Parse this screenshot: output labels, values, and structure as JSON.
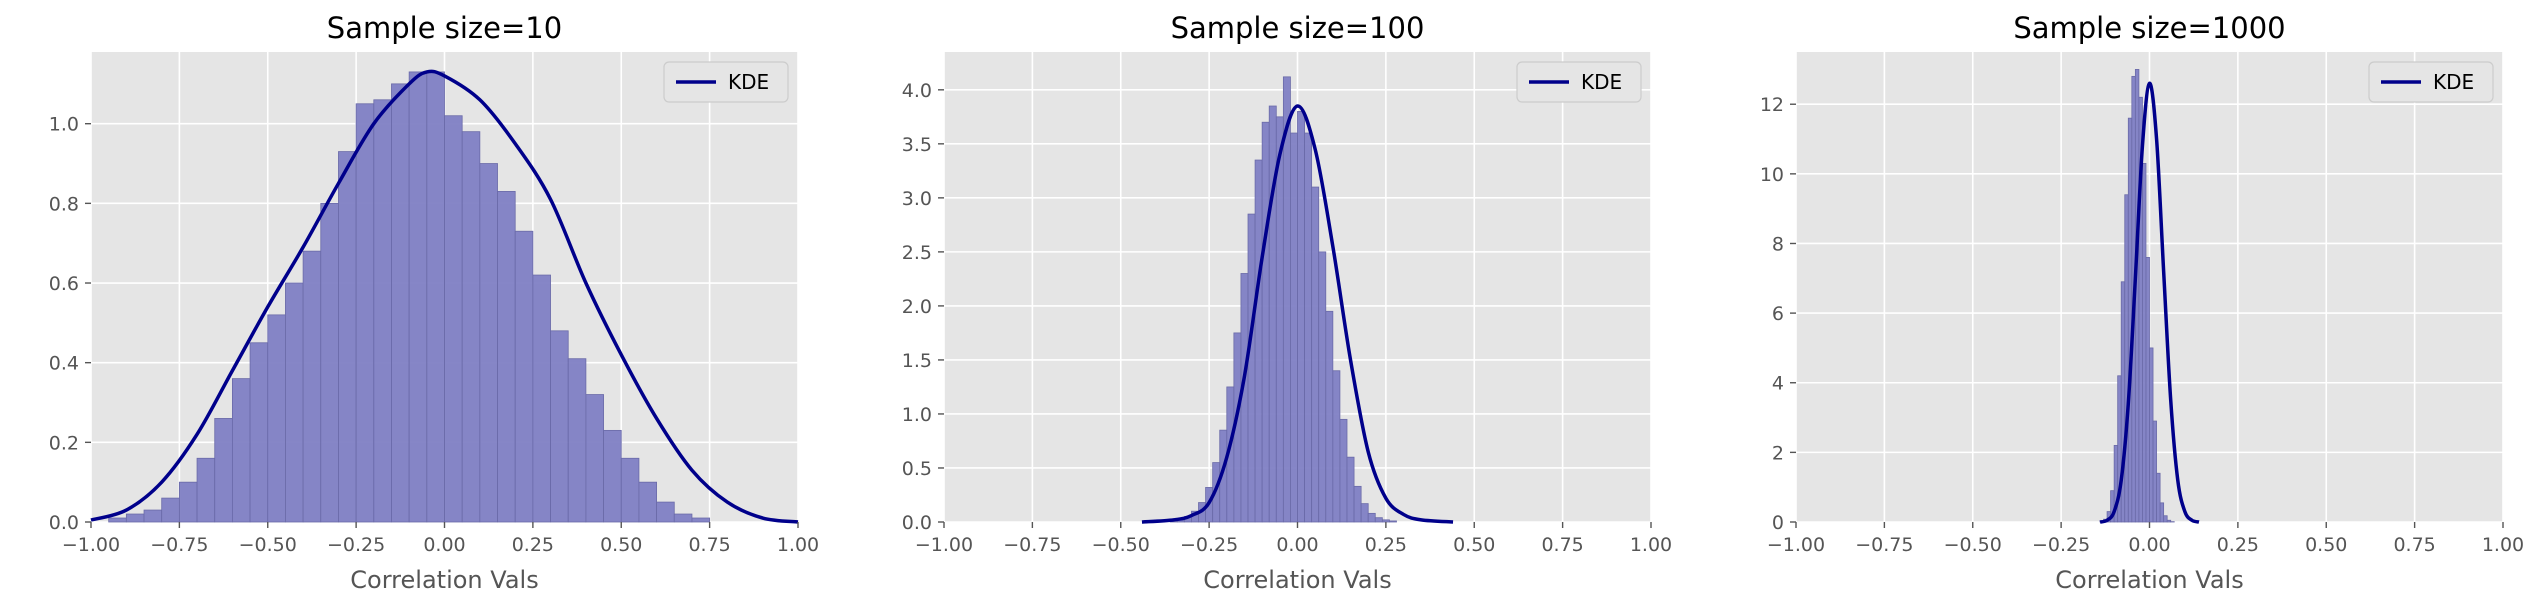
{
  "colors": {
    "axes_bg": "#e5e5e5",
    "grid": "#ffffff",
    "bar_fill": "#8080c4",
    "bar_edge": "#6a6aa8",
    "kde_line": "#00008b",
    "tick_text": "#555555"
  },
  "chart_data": [
    {
      "type": "bar",
      "overlay": "line",
      "title": "Sample size=10",
      "xlabel": "Correlation Vals",
      "ylabel": "",
      "xlim": [
        -1.0,
        1.0
      ],
      "ylim": [
        0,
        1.18
      ],
      "xticks": [
        -1.0,
        -0.75,
        -0.5,
        -0.25,
        0.0,
        0.25,
        0.5,
        0.75,
        1.0
      ],
      "xtick_labels": [
        "−1.00",
        "−0.75",
        "−0.50",
        "−0.25",
        "0.00",
        "0.25",
        "0.50",
        "0.75",
        "1.00"
      ],
      "yticks": [
        0.0,
        0.2,
        0.4,
        0.6,
        0.8,
        1.0
      ],
      "ytick_labels": [
        "0.0",
        "0.2",
        "0.4",
        "0.6",
        "0.8",
        "1.0"
      ],
      "legend": {
        "label": "KDE",
        "loc": "upper right"
      },
      "hist": {
        "start": -1.0,
        "width": 0.05,
        "values": [
          0.0,
          0.01,
          0.02,
          0.03,
          0.06,
          0.1,
          0.16,
          0.26,
          0.36,
          0.45,
          0.52,
          0.6,
          0.68,
          0.8,
          0.93,
          1.05,
          1.06,
          1.1,
          1.13,
          1.13,
          1.02,
          0.98,
          0.9,
          0.83,
          0.73,
          0.62,
          0.48,
          0.41,
          0.32,
          0.23,
          0.16,
          0.1,
          0.05,
          0.02,
          0.01,
          0.0
        ]
      },
      "kde": {
        "x": [
          -1.0,
          -0.9,
          -0.8,
          -0.7,
          -0.6,
          -0.5,
          -0.4,
          -0.3,
          -0.2,
          -0.1,
          -0.05,
          0.0,
          0.1,
          0.2,
          0.3,
          0.4,
          0.5,
          0.6,
          0.7,
          0.8,
          0.9,
          1.0
        ],
        "y": [
          0.005,
          0.03,
          0.1,
          0.22,
          0.38,
          0.54,
          0.69,
          0.85,
          1.0,
          1.1,
          1.13,
          1.12,
          1.06,
          0.95,
          0.81,
          0.6,
          0.42,
          0.26,
          0.13,
          0.05,
          0.01,
          0.0
        ]
      }
    },
    {
      "type": "bar",
      "overlay": "line",
      "title": "Sample size=100",
      "xlabel": "Correlation Vals",
      "ylabel": "",
      "xlim": [
        -1.0,
        1.0
      ],
      "ylim": [
        0,
        4.35
      ],
      "xticks": [
        -1.0,
        -0.75,
        -0.5,
        -0.25,
        0.0,
        0.25,
        0.5,
        0.75,
        1.0
      ],
      "xtick_labels": [
        "−1.00",
        "−0.75",
        "−0.50",
        "−0.25",
        "0.00",
        "0.25",
        "0.50",
        "0.75",
        "1.00"
      ],
      "yticks": [
        0.0,
        0.5,
        1.0,
        1.5,
        2.0,
        2.5,
        3.0,
        3.5,
        4.0
      ],
      "ytick_labels": [
        "0.0",
        "0.5",
        "1.0",
        "1.5",
        "2.0",
        "2.5",
        "3.0",
        "3.5",
        "4.0"
      ],
      "legend": {
        "label": "KDE",
        "loc": "upper right"
      },
      "hist": {
        "start": -0.4,
        "width": 0.02,
        "values": [
          0.0,
          0.0,
          0.01,
          0.02,
          0.05,
          0.1,
          0.18,
          0.32,
          0.55,
          0.85,
          1.25,
          1.75,
          2.3,
          2.85,
          3.35,
          3.7,
          3.85,
          3.75,
          4.12,
          3.6,
          3.8,
          3.6,
          3.1,
          2.5,
          1.95,
          1.4,
          0.95,
          0.6,
          0.33,
          0.17,
          0.08,
          0.04,
          0.02,
          0.01,
          0.0,
          0.0,
          0.0,
          0.0,
          0.0,
          0.0
        ]
      },
      "kde": {
        "x": [
          -0.44,
          -0.35,
          -0.3,
          -0.25,
          -0.2,
          -0.15,
          -0.1,
          -0.05,
          0.0,
          0.05,
          0.1,
          0.15,
          0.2,
          0.25,
          0.3,
          0.35,
          0.44
        ],
        "y": [
          0.0,
          0.02,
          0.06,
          0.18,
          0.6,
          1.35,
          2.45,
          3.4,
          3.85,
          3.45,
          2.55,
          1.5,
          0.65,
          0.22,
          0.07,
          0.02,
          0.0
        ]
      }
    },
    {
      "type": "bar",
      "overlay": "line",
      "title": "Sample size=1000",
      "xlabel": "Correlation Vals",
      "ylabel": "",
      "xlim": [
        -1.0,
        1.0
      ],
      "ylim": [
        0,
        13.5
      ],
      "xticks": [
        -1.0,
        -0.75,
        -0.5,
        -0.25,
        0.0,
        0.25,
        0.5,
        0.75,
        1.0
      ],
      "xtick_labels": [
        "−1.00",
        "−0.75",
        "−0.50",
        "−0.25",
        "0.00",
        "0.25",
        "0.50",
        "0.75",
        "1.00"
      ],
      "yticks": [
        0,
        2,
        4,
        6,
        8,
        10,
        12
      ],
      "ytick_labels": [
        "0",
        "2",
        "4",
        "6",
        "8",
        "10",
        "12"
      ],
      "legend": {
        "label": "KDE",
        "loc": "upper right"
      },
      "hist": {
        "start": -0.14,
        "width": 0.01,
        "values": [
          0.02,
          0.08,
          0.3,
          0.9,
          2.2,
          4.2,
          6.9,
          9.4,
          11.6,
          12.8,
          13.0,
          12.2,
          10.3,
          7.6,
          5.0,
          2.9,
          1.4,
          0.55,
          0.18,
          0.05,
          0.01
        ]
      },
      "kde": {
        "x": [
          -0.14,
          -0.12,
          -0.1,
          -0.08,
          -0.06,
          -0.04,
          -0.02,
          0.0,
          0.02,
          0.04,
          0.06,
          0.08,
          0.1,
          0.12,
          0.14
        ],
        "y": [
          0.0,
          0.05,
          0.3,
          1.2,
          3.4,
          7.0,
          10.8,
          12.6,
          11.0,
          7.2,
          3.5,
          1.2,
          0.3,
          0.05,
          0.0
        ]
      }
    }
  ]
}
